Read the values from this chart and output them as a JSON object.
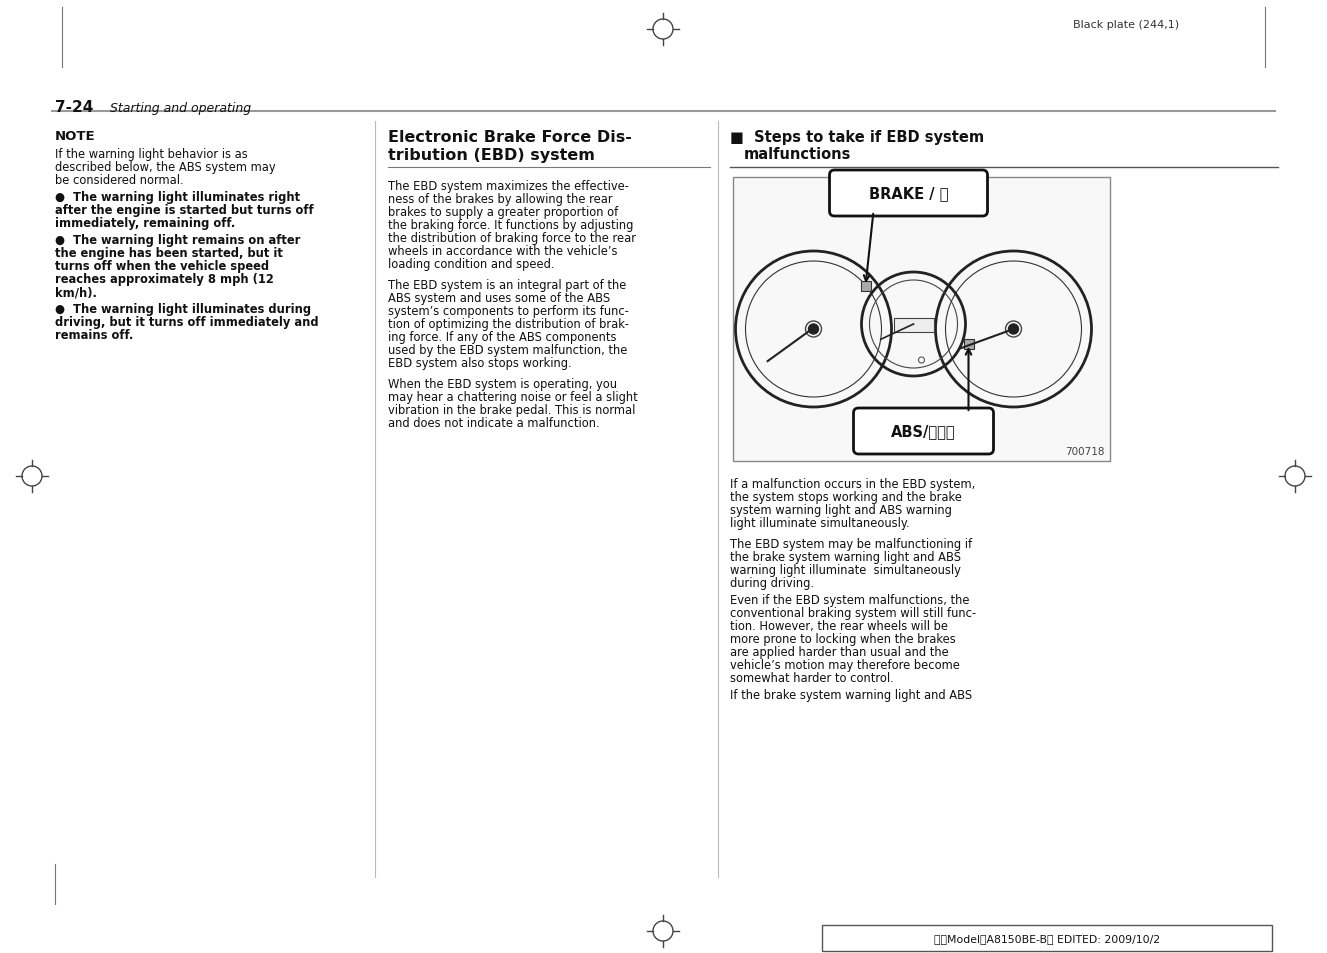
{
  "page_bg": "#ffffff",
  "top_marker_text": "Black plate (244,1)",
  "section_label": "7-24",
  "section_italic": "Starting and operating",
  "footer_text": "北米Model｢A8150BE-B｣ EDITED: 2009/10/2",
  "col1_title": "NOTE",
  "col2_title_line1": "Electronic Brake Force Dis-",
  "col2_title_line2": "tribution (EBD) system",
  "col3_title_line1": "■  Steps to take if EBD system",
  "col3_title_line2": "   malfunctions",
  "image_id": "700718",
  "brake_label": "BRAKE / Ⓘ",
  "abs_label": "ABS/ⒶⒷⓂ"
}
